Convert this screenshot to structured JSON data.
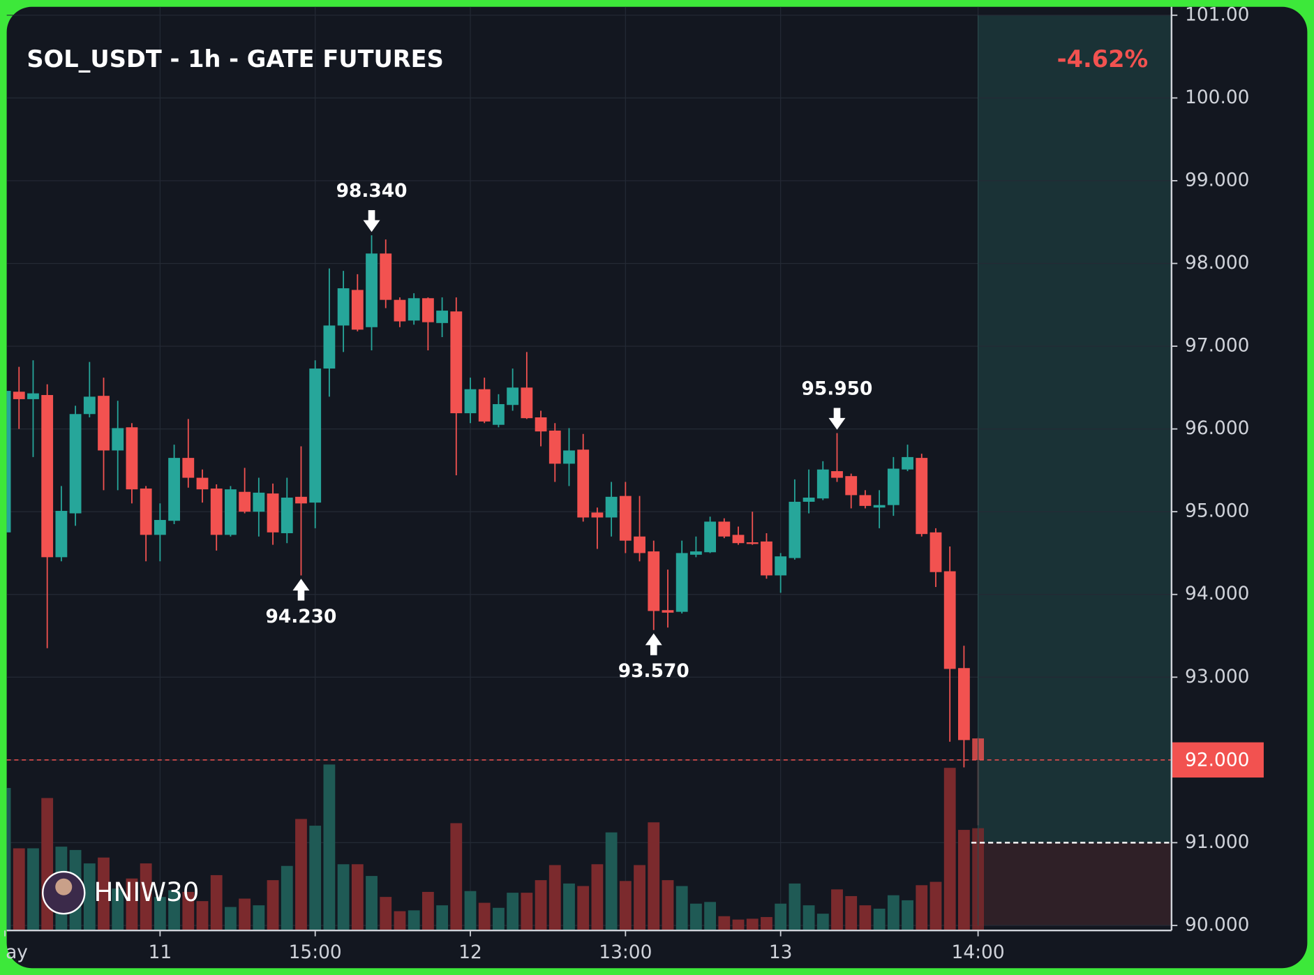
{
  "chart_data": {
    "type": "candlestick",
    "title": "SOL_USDT - 1h - GATE FUTURES",
    "change": "-4.62%",
    "watermark": "HNIW30",
    "categories": [
      "ay",
      null,
      null,
      null,
      null,
      null,
      null,
      null,
      null,
      null,
      null,
      "11",
      null,
      null,
      null,
      null,
      null,
      null,
      null,
      null,
      null,
      null,
      "15:00",
      null,
      null,
      null,
      null,
      null,
      null,
      null,
      null,
      null,
      null,
      "12",
      null,
      null,
      null,
      null,
      null,
      null,
      null,
      null,
      null,
      null,
      "13:00",
      null,
      null,
      null,
      null,
      null,
      null,
      null,
      null,
      null,
      null,
      "13",
      null,
      null,
      null,
      null,
      null,
      null,
      null,
      null,
      null,
      null,
      null,
      null,
      null,
      "14:00"
    ],
    "open": [
      94.75,
      96.45,
      96.36,
      96.41,
      94.45,
      94.98,
      96.18,
      96.4,
      95.74,
      96.02,
      95.28,
      94.72,
      94.89,
      95.65,
      95.41,
      95.28,
      94.72,
      95.24,
      95.0,
      95.22,
      94.74,
      95.18,
      95.11,
      96.73,
      97.25,
      97.68,
      97.23,
      98.12,
      97.56,
      97.31,
      97.58,
      97.28,
      97.42,
      96.19,
      96.48,
      96.05,
      96.29,
      96.5,
      96.14,
      95.98,
      95.58,
      95.75,
      94.99,
      94.93,
      95.19,
      94.7,
      94.52,
      93.81,
      93.79,
      94.48,
      94.51,
      94.88,
      94.72,
      94.63,
      94.64,
      94.23,
      94.44,
      95.12,
      95.16,
      95.49,
      95.43,
      95.2,
      95.05,
      95.08,
      95.51,
      95.65,
      94.75,
      94.28,
      93.11,
      92.26
    ],
    "high": [
      96.5,
      96.75,
      96.83,
      96.54,
      95.31,
      96.28,
      96.81,
      96.62,
      96.34,
      96.07,
      95.31,
      95.1,
      95.81,
      96.12,
      95.51,
      95.33,
      95.31,
      95.53,
      95.41,
      95.34,
      95.41,
      95.79,
      96.83,
      97.94,
      97.91,
      97.87,
      98.34,
      98.29,
      97.59,
      97.64,
      97.59,
      97.59,
      97.59,
      96.62,
      96.62,
      96.42,
      96.73,
      96.93,
      96.22,
      96.07,
      96.01,
      95.94,
      95.05,
      95.36,
      95.36,
      95.19,
      94.65,
      94.3,
      94.65,
      94.7,
      94.94,
      94.92,
      94.82,
      95.0,
      94.74,
      94.5,
      95.39,
      95.51,
      95.61,
      95.95,
      95.46,
      95.26,
      95.26,
      95.66,
      95.81,
      95.7,
      94.8,
      94.58,
      93.38,
      92.27
    ],
    "low": [
      94.7,
      96.0,
      95.66,
      93.35,
      94.4,
      94.83,
      96.14,
      95.26,
      95.26,
      95.1,
      94.4,
      94.4,
      94.85,
      95.29,
      95.11,
      94.53,
      94.7,
      94.98,
      94.7,
      94.6,
      94.62,
      94.23,
      94.8,
      96.39,
      96.93,
      97.18,
      96.95,
      97.46,
      97.23,
      97.26,
      96.95,
      97.11,
      95.44,
      96.07,
      96.07,
      96.02,
      96.22,
      96.12,
      95.79,
      95.36,
      95.31,
      94.88,
      94.55,
      94.7,
      94.5,
      94.4,
      93.57,
      93.6,
      93.77,
      94.45,
      94.5,
      94.68,
      94.6,
      94.6,
      94.19,
      94.02,
      94.42,
      94.98,
      95.14,
      95.36,
      95.04,
      95.04,
      94.8,
      94.95,
      95.49,
      94.7,
      94.09,
      92.22,
      91.91,
      91.21
    ],
    "close": [
      96.46,
      96.36,
      96.43,
      94.45,
      95.01,
      96.18,
      96.39,
      95.74,
      96.01,
      95.27,
      94.72,
      94.9,
      95.65,
      95.41,
      95.27,
      94.72,
      95.27,
      95.0,
      95.23,
      94.75,
      95.17,
      95.1,
      96.73,
      97.25,
      97.7,
      97.2,
      98.12,
      97.56,
      97.3,
      97.58,
      97.29,
      97.43,
      96.19,
      96.48,
      96.09,
      96.3,
      96.5,
      96.13,
      95.97,
      95.58,
      95.74,
      94.93,
      94.93,
      95.18,
      94.65,
      94.5,
      93.8,
      93.78,
      94.5,
      94.52,
      94.88,
      94.7,
      94.62,
      94.61,
      94.23,
      94.46,
      95.12,
      95.17,
      95.51,
      95.41,
      95.2,
      95.07,
      95.08,
      95.52,
      95.66,
      94.73,
      94.27,
      93.1,
      92.24,
      92.0
    ],
    "volume": [
      170,
      98,
      98,
      158,
      100,
      96,
      80,
      87,
      50,
      62,
      80,
      40,
      48,
      46,
      35,
      66,
      28,
      38,
      30,
      60,
      77,
      133,
      125,
      198,
      79,
      79,
      65,
      40,
      23,
      24,
      46,
      30,
      128,
      47,
      33,
      27,
      45,
      45,
      60,
      78,
      56,
      53,
      79,
      117,
      59,
      78,
      129,
      60,
      53,
      32,
      34,
      17,
      13,
      14,
      16,
      32,
      56,
      30,
      20,
      49,
      41,
      30,
      26,
      42,
      36,
      54,
      58,
      194,
      120,
      122
    ],
    "up_color": "#26a69a",
    "down_color": "#f25250",
    "up_volume_color": "#1f5a55",
    "down_volume_color": "#7b2a2d",
    "ylim": [
      90,
      101
    ],
    "yticks": [
      {
        "value": 90,
        "label": "90.000"
      },
      {
        "value": 91,
        "label": "91.000"
      },
      {
        "value": 92,
        "label": "92.000"
      },
      {
        "value": 93,
        "label": "93.000"
      },
      {
        "value": 94,
        "label": "94.000"
      },
      {
        "value": 95,
        "label": "95.000"
      },
      {
        "value": 96,
        "label": "96.000"
      },
      {
        "value": 97,
        "label": "97.000"
      },
      {
        "value": 98,
        "label": "98.000"
      },
      {
        "value": 99,
        "label": "99.000"
      },
      {
        "value": 100,
        "label": "100.00"
      },
      {
        "value": 101,
        "label": "101.00"
      }
    ],
    "grid": true,
    "last_price": {
      "value": 92,
      "label": "92.000"
    },
    "annotations": [
      {
        "kind": "high",
        "value": 98.34,
        "label": "98.340"
      },
      {
        "kind": "low",
        "value": 94.23,
        "label": "94.230"
      },
      {
        "kind": "low",
        "value": 93.57,
        "label": "93.570"
      },
      {
        "kind": "high",
        "value": 95.95,
        "label": "95.950"
      }
    ],
    "position": {
      "entry": 91,
      "target": 101,
      "stop": 90,
      "profit_color": "#1a3236",
      "loss_color": "#2f2027"
    }
  }
}
